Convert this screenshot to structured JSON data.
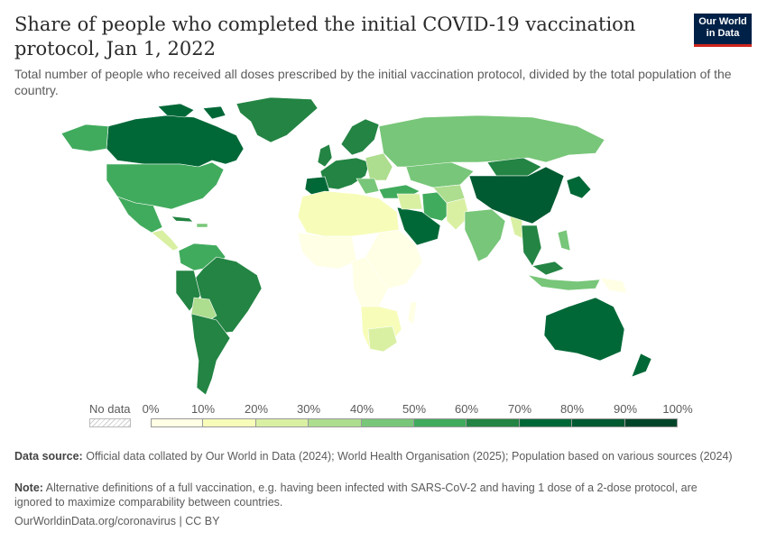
{
  "header": {
    "title": "Share of people who completed the initial COVID-19 vaccination protocol, Jan 1, 2022",
    "subtitle": "Total number of people who received all doses prescribed by the initial vaccination protocol, divided by the total population of the country.",
    "logo_line1": "Our World",
    "logo_line2": "in Data"
  },
  "legend": {
    "no_data_label": "No data",
    "ticks": [
      "0%",
      "10%",
      "20%",
      "30%",
      "40%",
      "50%",
      "60%",
      "70%",
      "80%",
      "90%",
      "100%"
    ],
    "colors": [
      "#ffffe5",
      "#f7fcb9",
      "#d9f0a3",
      "#addd8e",
      "#78c679",
      "#41ab5d",
      "#238443",
      "#006837",
      "#005a32",
      "#004529"
    ]
  },
  "map_colors": {
    "ocean": "#ffffff",
    "border": "#ffffff",
    "no_data": "#e8e8e8"
  },
  "footer": {
    "source_label": "Data source:",
    "source_text": "Official data collated by Our World in Data (2024); World Health Organisation (2025); Population based on various sources (2024)",
    "note_label": "Note:",
    "note_text": "Alternative definitions of a full vaccination, e.g. having been infected with SARS-CoV-2 and having 1 dose of a 2-dose protocol, are ignored to maximize comparability between countries.",
    "link": "OurWorldinData.org/coronavirus | CC BY"
  }
}
